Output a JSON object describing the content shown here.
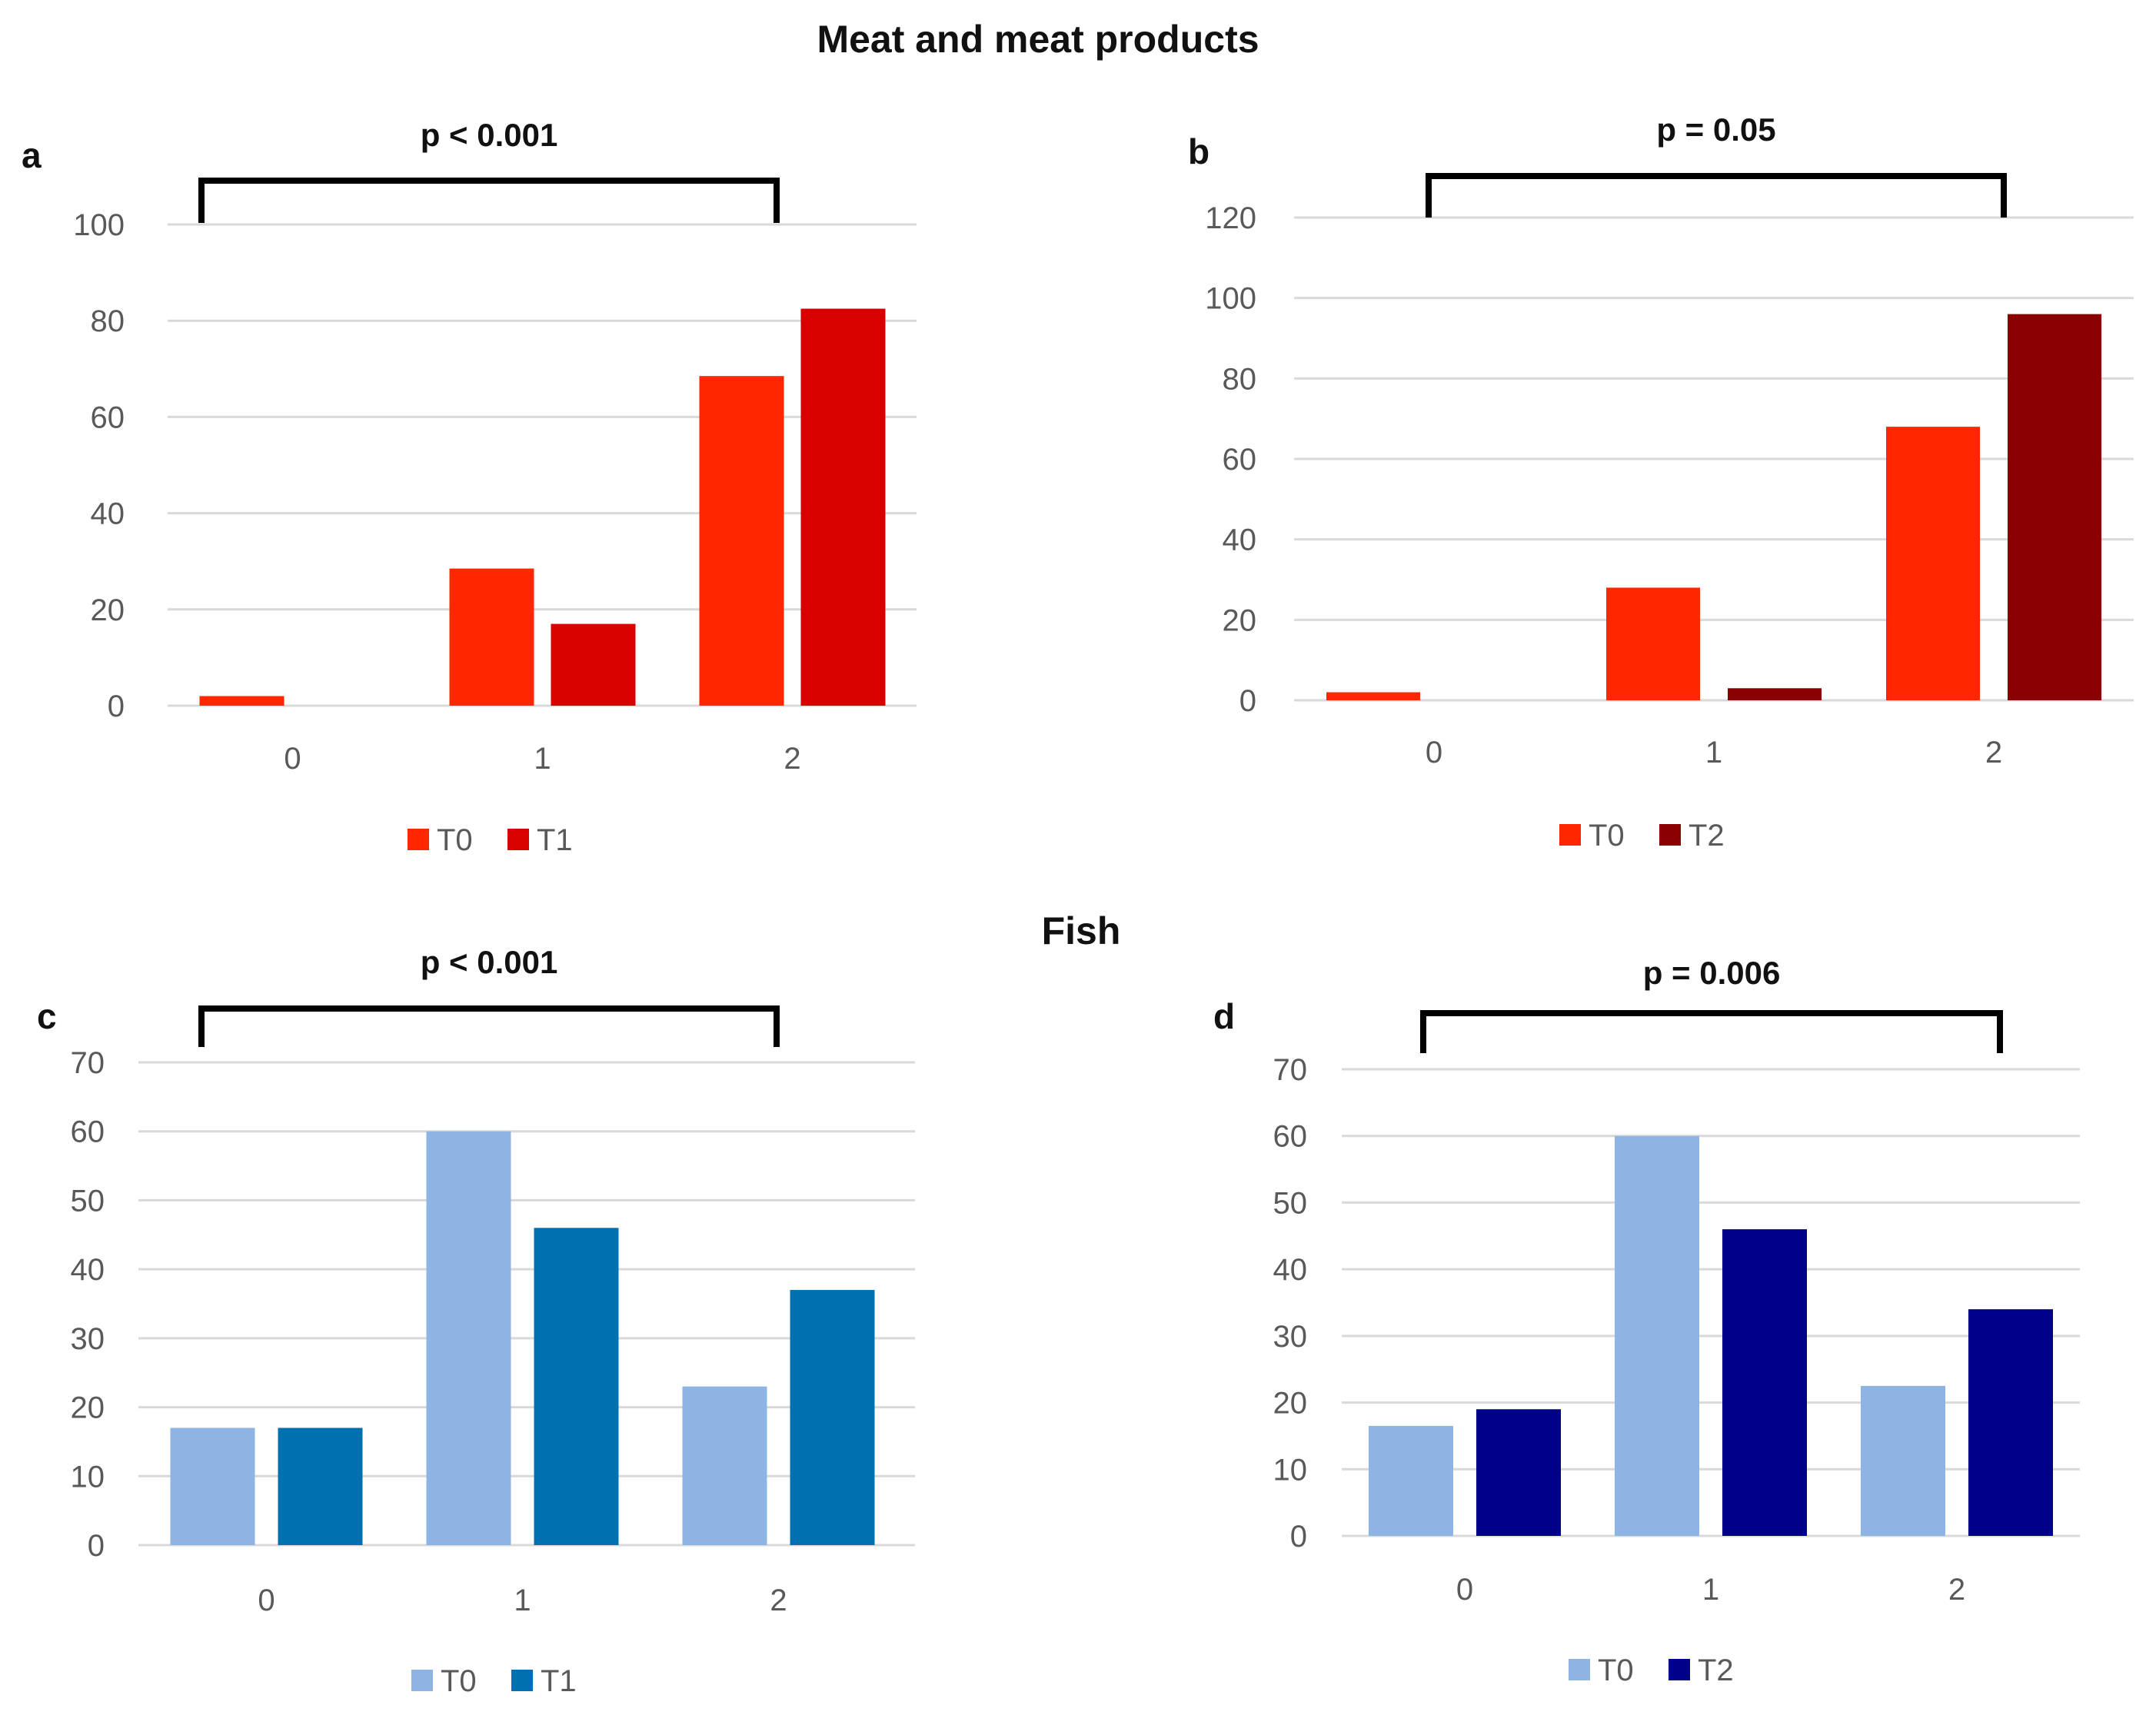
{
  "titles": {
    "meat": "Meat and meat products",
    "fish": "Fish"
  },
  "chart_data": [
    {
      "type": "bar",
      "panel": "a",
      "group": "Meat and meat products",
      "categories": [
        "0",
        "1",
        "2"
      ],
      "series": [
        {
          "name": "T0",
          "values": [
            2,
            28.5,
            68.5
          ],
          "color": "#ff2600"
        },
        {
          "name": "T1",
          "values": [
            0,
            17,
            82.5
          ],
          "color": "#d90000"
        }
      ],
      "ylim": [
        0,
        100
      ],
      "yticks": [
        0,
        20,
        40,
        60,
        80,
        100
      ],
      "significance": {
        "label": "p < 0.001",
        "from": "0",
        "to": "2"
      },
      "legend": "bottom",
      "grid": true,
      "xlabel": "",
      "ylabel": ""
    },
    {
      "type": "bar",
      "panel": "b",
      "group": "Meat and meat products",
      "categories": [
        "0",
        "1",
        "2"
      ],
      "series": [
        {
          "name": "T0",
          "values": [
            2,
            28,
            68
          ],
          "color": "#ff2600"
        },
        {
          "name": "T2",
          "values": [
            0,
            3,
            96
          ],
          "color": "#8b0000"
        }
      ],
      "ylim": [
        0,
        120
      ],
      "yticks": [
        0,
        20,
        40,
        60,
        80,
        100,
        120
      ],
      "significance": {
        "label": "p = 0.05",
        "from": "0",
        "to": "2"
      },
      "legend": "bottom",
      "grid": true,
      "xlabel": "",
      "ylabel": ""
    },
    {
      "type": "bar",
      "panel": "c",
      "group": "Fish",
      "categories": [
        "0",
        "1",
        "2"
      ],
      "series": [
        {
          "name": "T0",
          "values": [
            17,
            60,
            23
          ],
          "color": "#8eb4e3"
        },
        {
          "name": "T1",
          "values": [
            17,
            46,
            37
          ],
          "color": "#0070b0"
        }
      ],
      "ylim": [
        0,
        70
      ],
      "yticks": [
        0,
        10,
        20,
        30,
        40,
        50,
        60,
        70
      ],
      "significance": {
        "label": "p < 0.001",
        "from": "0",
        "to": "2"
      },
      "legend": "bottom",
      "grid": true,
      "xlabel": "",
      "ylabel": ""
    },
    {
      "type": "bar",
      "panel": "d",
      "group": "Fish",
      "categories": [
        "0",
        "1",
        "2"
      ],
      "series": [
        {
          "name": "T0",
          "values": [
            16.5,
            60,
            22.5
          ],
          "color": "#8eb4e3"
        },
        {
          "name": "T2",
          "values": [
            19,
            46,
            34
          ],
          "color": "#00008b"
        }
      ],
      "ylim": [
        0,
        70
      ],
      "yticks": [
        0,
        10,
        20,
        30,
        40,
        50,
        60,
        70
      ],
      "significance": {
        "label": "p = 0.006",
        "from": "0",
        "to": "2"
      },
      "legend": "bottom",
      "grid": true,
      "xlabel": "",
      "ylabel": ""
    }
  ]
}
